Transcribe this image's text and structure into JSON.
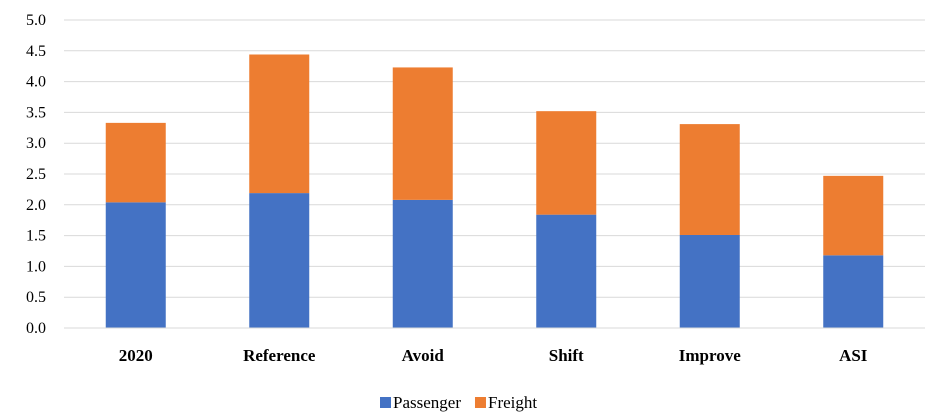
{
  "chart_data": {
    "type": "bar",
    "stacked": true,
    "categories": [
      "2020",
      "Reference",
      "Avoid",
      "Shift",
      "Improve",
      "ASI"
    ],
    "series": [
      {
        "name": "Passenger",
        "color": "#4472C4",
        "values": [
          2.04,
          2.19,
          2.08,
          1.84,
          1.51,
          1.18
        ]
      },
      {
        "name": "Freight",
        "color": "#ED7D31",
        "values": [
          1.29,
          2.25,
          2.15,
          1.68,
          1.8,
          1.29
        ]
      }
    ],
    "ylim": [
      0,
      5
    ],
    "yticks": [
      "0.0",
      "0.5",
      "1.0",
      "1.5",
      "2.0",
      "2.5",
      "3.0",
      "3.5",
      "4.0",
      "4.5",
      "5.0"
    ],
    "grid": true,
    "legend_position": "bottom-center",
    "title": "",
    "xlabel": "",
    "ylabel": ""
  }
}
